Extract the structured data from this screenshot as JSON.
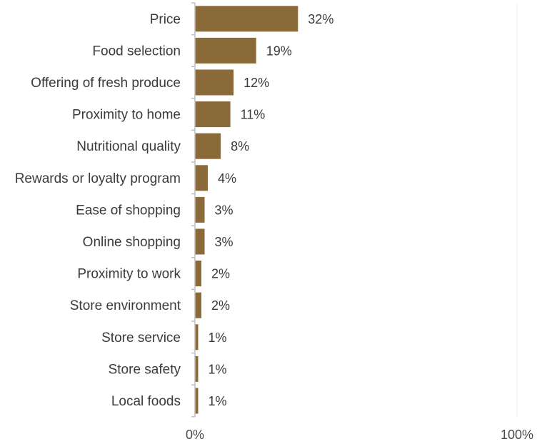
{
  "chart_data": {
    "type": "bar",
    "orientation": "horizontal",
    "title": "",
    "xlabel": "",
    "ylabel": "",
    "categories": [
      "Price",
      "Food selection",
      "Offering of fresh produce",
      "Proximity to home",
      "Nutritional quality",
      "Rewards or loyalty program",
      "Ease of shopping",
      "Online shopping",
      "Proximity to work",
      "Store environment",
      "Store service",
      "Store safety",
      "Local foods"
    ],
    "values": [
      32,
      19,
      12,
      11,
      8,
      4,
      3,
      3,
      2,
      2,
      1,
      1,
      1
    ],
    "value_labels": [
      "32%",
      "19%",
      "12%",
      "11%",
      "8%",
      "4%",
      "3%",
      "3%",
      "2%",
      "2%",
      "1%",
      "1%",
      "1%"
    ],
    "xlim": [
      0,
      100
    ],
    "x_ticks": [
      0,
      100
    ],
    "x_tick_labels": [
      "0%",
      "100%"
    ],
    "grid": false,
    "legend": "none",
    "colors": {
      "bar": "#8B6A3A",
      "axis": "#bfbfbf",
      "text": "#3a3a3a"
    }
  }
}
